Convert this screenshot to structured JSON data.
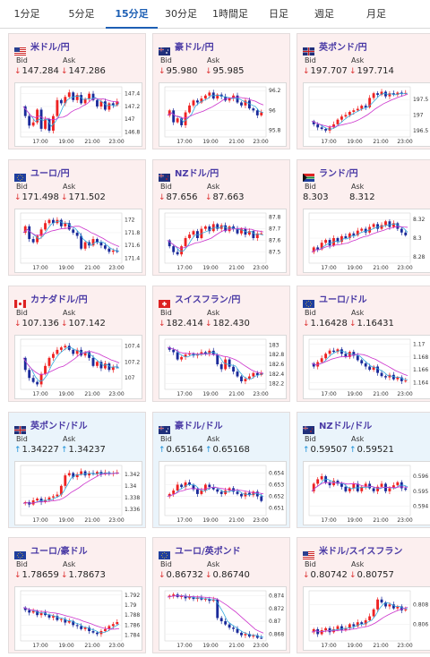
{
  "tabs": [
    {
      "label": "1分足"
    },
    {
      "label": "5分足"
    },
    {
      "label": "15分足",
      "active": true
    },
    {
      "label": "30分足"
    },
    {
      "label": "1時間足"
    },
    {
      "label": "日足"
    },
    {
      "label": "週足"
    },
    {
      "label": "月足"
    }
  ],
  "labels": {
    "bid": "Bid",
    "ask": "Ask"
  },
  "colors": {
    "up_bg": "#eaf4fb",
    "down_bg": "#fcefef",
    "down_arrow": "#dd3333",
    "up_arrow": "#1a8fd8",
    "pair_text": "#4a3aa5",
    "bull_candle": "#ee2222",
    "bear_candle": "#1a2a9a",
    "ma_short": "#33aadd",
    "ma_long": "#cc33cc"
  },
  "x_ticks": [
    "17:00",
    "19:00",
    "21:00",
    "23:00"
  ],
  "cards": [
    {
      "pair": "米ドル/円",
      "flag": "us",
      "dir": "down",
      "bid": "147.284",
      "ask": "147.286",
      "chart_data": {
        "type": "candlestick",
        "yticks": [
          "147.4",
          "147.2",
          "147",
          "146.8"
        ],
        "ylim": [
          146.75,
          147.48
        ],
        "path": [
          147.2,
          147.05,
          146.9,
          146.95,
          147.15,
          146.85,
          147.0,
          146.82,
          147.05,
          147.3,
          147.25,
          147.35,
          147.42,
          147.3,
          147.38,
          147.25,
          147.32,
          147.4,
          147.3,
          147.2,
          147.28,
          147.15,
          147.25,
          147.22,
          147.28
        ]
      }
    },
    {
      "pair": "豪ドル/円",
      "flag": "au",
      "dir": "down",
      "bid": "95.980",
      "ask": "95.985",
      "chart_data": {
        "type": "candlestick",
        "yticks": [
          "96.2",
          "96",
          "95.8"
        ],
        "ylim": [
          95.75,
          96.22
        ],
        "path": [
          95.95,
          96.0,
          95.88,
          95.92,
          95.85,
          95.98,
          96.05,
          96.1,
          96.08,
          96.12,
          96.15,
          96.18,
          96.12,
          96.16,
          96.14,
          96.1,
          96.12,
          96.15,
          96.08,
          96.05,
          96.1,
          96.02,
          96.0,
          95.95,
          95.98
        ]
      }
    },
    {
      "pair": "英ポンド/円",
      "flag": "gb",
      "dir": "down",
      "bid": "197.707",
      "ask": "197.714",
      "chart_data": {
        "type": "candlestick",
        "yticks": [
          "197.5",
          "197",
          "196.5"
        ],
        "ylim": [
          196.35,
          197.85
        ],
        "path": [
          196.8,
          196.7,
          196.6,
          196.55,
          196.5,
          196.6,
          196.7,
          196.85,
          196.95,
          197.0,
          197.1,
          197.15,
          197.2,
          197.3,
          197.25,
          197.55,
          197.7,
          197.65,
          197.75,
          197.6,
          197.7,
          197.65,
          197.72,
          197.68,
          197.71
        ]
      }
    },
    {
      "pair": "ユーロ/円",
      "flag": "eu",
      "dir": "down",
      "bid": "171.498",
      "ask": "171.502",
      "chart_data": {
        "type": "candlestick",
        "yticks": [
          "172",
          "171.8",
          "171.6",
          "171.4"
        ],
        "ylim": [
          171.35,
          172.08
        ],
        "path": [
          171.8,
          171.9,
          171.7,
          171.65,
          171.75,
          171.85,
          171.95,
          172.0,
          171.95,
          172.0,
          171.9,
          171.95,
          171.85,
          171.8,
          171.75,
          171.55,
          171.65,
          171.6,
          171.7,
          171.65,
          171.6,
          171.55,
          171.5,
          171.52,
          171.5
        ]
      }
    },
    {
      "pair": "NZドル/円",
      "flag": "nz",
      "dir": "down",
      "bid": "87.656",
      "ask": "87.663",
      "chart_data": {
        "type": "candlestick",
        "yticks": [
          "87.8",
          "87.7",
          "87.6",
          "87.5"
        ],
        "ylim": [
          87.42,
          87.82
        ],
        "path": [
          87.6,
          87.55,
          87.5,
          87.48,
          87.55,
          87.62,
          87.65,
          87.68,
          87.62,
          87.7,
          87.72,
          87.68,
          87.74,
          87.7,
          87.73,
          87.68,
          87.72,
          87.7,
          87.66,
          87.7,
          87.65,
          87.68,
          87.62,
          87.66,
          87.66
        ]
      }
    },
    {
      "pair": "ランド/円",
      "flag": "za",
      "dir": "none",
      "bid": "8.303",
      "ask": "8.312",
      "chart_data": {
        "type": "candlestick",
        "yticks": [
          "8.32",
          "8.3",
          "8.28"
        ],
        "ylim": [
          8.275,
          8.325
        ],
        "path": [
          8.285,
          8.29,
          8.288,
          8.295,
          8.298,
          8.292,
          8.3,
          8.296,
          8.302,
          8.3,
          8.305,
          8.303,
          8.308,
          8.31,
          8.306,
          8.312,
          8.315,
          8.31,
          8.314,
          8.318,
          8.312,
          8.316,
          8.31,
          8.306,
          8.303
        ]
      }
    },
    {
      "pair": "カナダドル/円",
      "flag": "ca",
      "dir": "down",
      "bid": "107.136",
      "ask": "107.142",
      "chart_data": {
        "type": "candlestick",
        "yticks": [
          "107.4",
          "107.2",
          "107"
        ],
        "ylim": [
          106.88,
          107.46
        ],
        "path": [
          107.25,
          107.1,
          107.0,
          106.95,
          106.92,
          107.05,
          107.15,
          107.25,
          107.3,
          107.35,
          107.38,
          107.4,
          107.35,
          107.3,
          107.35,
          107.28,
          107.32,
          107.25,
          107.15,
          107.2,
          107.12,
          107.18,
          107.1,
          107.14,
          107.13
        ]
      }
    },
    {
      "pair": "スイスフラン/円",
      "flag": "ch",
      "dir": "down",
      "bid": "182.414",
      "ask": "182.430",
      "chart_data": {
        "type": "candlestick",
        "yticks": [
          "183",
          "182.8",
          "182.6",
          "182.4",
          "182.2"
        ],
        "ylim": [
          182.12,
          183.08
        ],
        "path": [
          182.95,
          182.9,
          182.85,
          182.7,
          182.75,
          182.8,
          182.82,
          182.78,
          182.8,
          182.85,
          182.82,
          182.88,
          182.8,
          182.6,
          182.5,
          182.7,
          182.55,
          182.45,
          182.35,
          182.25,
          182.3,
          182.35,
          182.42,
          182.38,
          182.42
        ]
      }
    },
    {
      "pair": "ユーロ/ドル",
      "flag": "eu",
      "flag2": "us",
      "dir": "down",
      "bid": "1.16428",
      "ask": "1.16431",
      "chart_data": {
        "type": "candlestick",
        "yticks": [
          "1.17",
          "1.168",
          "1.166",
          "1.164"
        ],
        "ylim": [
          1.1632,
          1.1705
        ],
        "path": [
          1.167,
          1.1665,
          1.1672,
          1.1678,
          1.1685,
          1.169,
          1.1688,
          1.1692,
          1.1685,
          1.168,
          1.1688,
          1.1682,
          1.1675,
          1.167,
          1.1665,
          1.166,
          1.1665,
          1.1655,
          1.165,
          1.1648,
          1.1652,
          1.1645,
          1.1648,
          1.1642,
          1.1643
        ]
      }
    },
    {
      "pair": "英ポンド/ドル",
      "flag": "gb",
      "flag2": "us",
      "dir": "up",
      "bid": "1.34227",
      "ask": "1.34237",
      "chart_data": {
        "type": "candlestick",
        "yticks": [
          "1.342",
          "1.34",
          "1.338",
          "1.336"
        ],
        "ylim": [
          1.3352,
          1.3432
        ],
        "path": [
          1.337,
          1.3372,
          1.3368,
          1.3375,
          1.3378,
          1.3372,
          1.3376,
          1.338,
          1.3382,
          1.3385,
          1.34,
          1.3418,
          1.3422,
          1.3415,
          1.342,
          1.3425,
          1.3418,
          1.3422,
          1.342,
          1.3424,
          1.342,
          1.3423,
          1.3421,
          1.3422,
          1.3423
        ]
      }
    },
    {
      "pair": "豪ドル/ドル",
      "flag": "au",
      "flag2": "us",
      "dir": "up",
      "bid": "0.65164",
      "ask": "0.65168",
      "chart_data": {
        "type": "candlestick",
        "yticks": [
          "0.654",
          "0.653",
          "0.652",
          "0.651"
        ],
        "ylim": [
          0.6505,
          0.6545
        ],
        "path": [
          0.652,
          0.6522,
          0.6525,
          0.653,
          0.6528,
          0.6532,
          0.653,
          0.6526,
          0.6522,
          0.6525,
          0.653,
          0.6528,
          0.6526,
          0.6524,
          0.6522,
          0.6525,
          0.6527,
          0.6524,
          0.6522,
          0.652,
          0.6523,
          0.6521,
          0.6524,
          0.652,
          0.6516
        ]
      }
    },
    {
      "pair": "NZドル/ドル",
      "flag": "nz",
      "flag2": "us",
      "dir": "up",
      "bid": "0.59507",
      "ask": "0.59521",
      "chart_data": {
        "type": "candlestick",
        "yticks": [
          "0.596",
          "0.595",
          "0.594"
        ],
        "ylim": [
          0.5935,
          0.5966
        ],
        "path": [
          0.595,
          0.5955,
          0.5958,
          0.596,
          0.5956,
          0.5954,
          0.5957,
          0.5955,
          0.5953,
          0.595,
          0.5952,
          0.5955,
          0.595,
          0.5953,
          0.5955,
          0.5952,
          0.595,
          0.5953,
          0.5955,
          0.595,
          0.5952,
          0.5954,
          0.5956,
          0.5952,
          0.5951
        ]
      }
    },
    {
      "pair": "ユーロ/豪ドル",
      "flag": "eu",
      "flag2": "au",
      "dir": "down",
      "bid": "1.78659",
      "ask": "1.78673",
      "chart_data": {
        "type": "candlestick",
        "yticks": [
          "1.792",
          "1.79",
          "1.788",
          "1.786",
          "1.784"
        ],
        "ylim": [
          1.7832,
          1.7925
        ],
        "path": [
          1.7895,
          1.789,
          1.7885,
          1.7888,
          1.788,
          1.7885,
          1.788,
          1.7875,
          1.7878,
          1.787,
          1.7872,
          1.7865,
          1.7868,
          1.786,
          1.7858,
          1.7852,
          1.7855,
          1.7848,
          1.7845,
          1.7842,
          1.7848,
          1.7852,
          1.7858,
          1.7862,
          1.7866
        ]
      }
    },
    {
      "pair": "ユーロ/英ポンド",
      "flag": "eu",
      "flag2": "gb",
      "dir": "down",
      "bid": "0.86732",
      "ask": "0.86740",
      "chart_data": {
        "type": "candlestick",
        "yticks": [
          "0.874",
          "0.872",
          "0.87",
          "0.868"
        ],
        "ylim": [
          0.8672,
          0.8745
        ],
        "path": [
          0.8738,
          0.874,
          0.8742,
          0.8738,
          0.874,
          0.8736,
          0.8738,
          0.8735,
          0.8737,
          0.8734,
          0.8735,
          0.8732,
          0.8734,
          0.8705,
          0.87,
          0.8695,
          0.869,
          0.8688,
          0.8682,
          0.8678,
          0.868,
          0.8676,
          0.8678,
          0.8674,
          0.8673
        ]
      }
    },
    {
      "pair": "米ドル/スイスフラン",
      "flag": "us",
      "flag2": "ch",
      "dir": "down",
      "bid": "0.80742",
      "ask": "0.80757",
      "chart_data": {
        "type": "candlestick",
        "yticks": [
          "0.808",
          "0.806"
        ],
        "ylim": [
          0.8045,
          0.8092
        ],
        "path": [
          0.8052,
          0.8055,
          0.805,
          0.8054,
          0.8056,
          0.8052,
          0.8055,
          0.8058,
          0.8054,
          0.8056,
          0.806,
          0.8058,
          0.8062,
          0.806,
          0.8064,
          0.8068,
          0.8075,
          0.8085,
          0.8082,
          0.8078,
          0.808,
          0.8076,
          0.8078,
          0.8074,
          0.8075
        ]
      }
    }
  ]
}
